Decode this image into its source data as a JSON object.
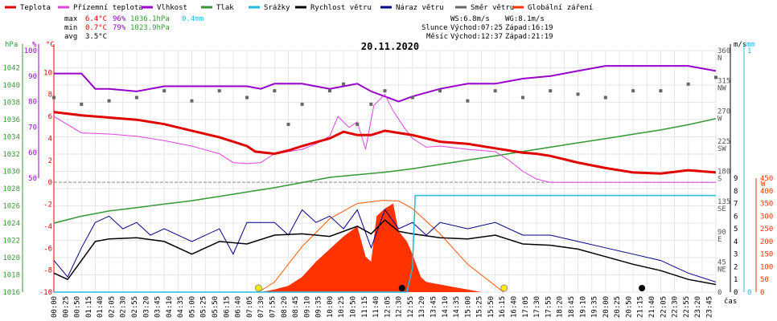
{
  "chart_data": {
    "type": "line",
    "title": "20.11.2020",
    "legend": [
      {
        "label": "Teplota",
        "color": "#e00000"
      },
      {
        "label": "Přízemní teplota",
        "color": "#dd44dd"
      },
      {
        "label": "Vlhkost",
        "color": "#9900cc"
      },
      {
        "label": "Tlak",
        "color": "#339933"
      },
      {
        "label": "Srážky",
        "color": "#22bbdd"
      },
      {
        "label": "Rychlost větru",
        "color": "#000000"
      },
      {
        "label": "Náraz větru",
        "color": "#000088"
      },
      {
        "label": "Směr větru",
        "color": "#666666"
      },
      {
        "label": "Globální záření",
        "color": "#ff3300"
      }
    ],
    "stats": {
      "max": {
        "label": "max",
        "temp": "6.4°C",
        "hum": "96%",
        "press": "1036.1hPa",
        "rain": "0.4mm"
      },
      "min": {
        "label": "min",
        "temp": "0.7°C",
        "hum": "79%",
        "press": "1023.9hPa"
      },
      "avg": {
        "label": "avg",
        "temp": "3.5°C"
      }
    },
    "wind_info": {
      "ws": "WS:6.8m/s",
      "wg": "WG:8.1m/s"
    },
    "sun_info": {
      "label": "Slunce",
      "rise": "Východ:07:25",
      "set": "Západ:16:19"
    },
    "moon_info": {
      "label": "Měsíc",
      "rise": "Východ:12:37",
      "set": "Západ:21:19"
    },
    "axes": {
      "hpa": {
        "unit": "hPa",
        "range": [
          1016,
          1044
        ],
        "ticks": [
          1016,
          1018,
          1020,
          1022,
          1024,
          1026,
          1028,
          1030,
          1032,
          1034,
          1036,
          1038,
          1040,
          1042
        ]
      },
      "hum": {
        "unit": "%",
        "range": [
          50,
          100
        ],
        "ticks": [
          50,
          60,
          70,
          80,
          90,
          100
        ]
      },
      "temp": {
        "unit": "°C",
        "range": [
          -10,
          12
        ],
        "ticks": [
          -10,
          -8,
          -6,
          -4,
          -2,
          0,
          2,
          4,
          6,
          8,
          10
        ]
      },
      "dir": {
        "ticks": [
          {
            "v": 0,
            "d": "0",
            "c": ""
          },
          {
            "v": 45,
            "d": "45",
            "c": "NE"
          },
          {
            "v": 90,
            "d": "90",
            "c": "E"
          },
          {
            "v": 135,
            "d": "135",
            "c": "SE"
          },
          {
            "v": 180,
            "d": "180",
            "c": "S"
          },
          {
            "v": 225,
            "d": "225",
            "c": "SW"
          },
          {
            "v": 270,
            "d": "270",
            "c": "W"
          },
          {
            "v": 315,
            "d": "315",
            "c": "NW"
          },
          {
            "v": 360,
            "d": "360",
            "c": "N"
          }
        ]
      },
      "wind": {
        "unit": "m/s",
        "range": [
          0,
          9
        ],
        "ticks": [
          0,
          1,
          2,
          3,
          4,
          5,
          6,
          7,
          8,
          9
        ]
      },
      "rain": {
        "unit": "mm",
        "range": [
          0,
          1
        ],
        "ticks": [
          0,
          1
        ]
      },
      "rad": {
        "unit": "W",
        "range": [
          0,
          450
        ],
        "ticks": [
          0,
          50,
          100,
          150,
          200,
          250,
          300,
          350,
          400,
          450
        ]
      },
      "x_unit": "čas",
      "x_ticks": [
        "00:00",
        "00:25",
        "00:50",
        "01:15",
        "01:40",
        "02:05",
        "02:30",
        "02:55",
        "03:20",
        "03:45",
        "04:10",
        "04:35",
        "05:00",
        "05:25",
        "05:50",
        "06:15",
        "06:40",
        "07:05",
        "07:30",
        "07:55",
        "08:20",
        "08:45",
        "09:10",
        "09:35",
        "10:00",
        "10:25",
        "10:50",
        "11:15",
        "11:40",
        "12:05",
        "12:30",
        "12:55",
        "13:20",
        "13:45",
        "14:10",
        "14:35",
        "15:00",
        "15:25",
        "15:50",
        "16:15",
        "16:40",
        "17:05",
        "17:30",
        "17:55",
        "18:20",
        "18:45",
        "19:10",
        "19:35",
        "20:00",
        "20:25",
        "20:50",
        "21:15",
        "21:40",
        "22:05",
        "22:30",
        "22:55",
        "23:20",
        "23:45"
      ]
    },
    "series": {
      "teplota": [
        [
          0,
          6.4
        ],
        [
          1,
          6.1
        ],
        [
          2,
          5.9
        ],
        [
          3,
          5.7
        ],
        [
          4,
          5.3
        ],
        [
          5,
          4.7
        ],
        [
          6,
          4.1
        ],
        [
          7,
          3.3
        ],
        [
          7.3,
          2.8
        ],
        [
          8,
          2.6
        ],
        [
          8.5,
          2.9
        ],
        [
          9,
          3.3
        ],
        [
          10,
          4.0
        ],
        [
          10.5,
          4.6
        ],
        [
          11,
          4.3
        ],
        [
          11.5,
          4.3
        ],
        [
          12,
          4.7
        ],
        [
          12.5,
          4.5
        ],
        [
          13,
          4.3
        ],
        [
          14,
          3.7
        ],
        [
          15,
          3.5
        ],
        [
          16,
          3.1
        ],
        [
          16.5,
          2.9
        ],
        [
          17,
          2.7
        ],
        [
          17.5,
          2.6
        ],
        [
          18,
          2.4
        ],
        [
          19,
          1.8
        ],
        [
          20,
          1.3
        ],
        [
          21,
          0.9
        ],
        [
          22,
          0.8
        ],
        [
          23,
          1.1
        ],
        [
          24,
          0.9
        ]
      ],
      "prizemni": [
        [
          0,
          6.0
        ],
        [
          1,
          4.5
        ],
        [
          2,
          4.4
        ],
        [
          3,
          4.2
        ],
        [
          4,
          3.8
        ],
        [
          5,
          3.3
        ],
        [
          6,
          2.6
        ],
        [
          6.5,
          1.8
        ],
        [
          7,
          1.7
        ],
        [
          7.5,
          1.8
        ],
        [
          8,
          2.6
        ],
        [
          9,
          3.0
        ],
        [
          9.5,
          3.5
        ],
        [
          10,
          4.2
        ],
        [
          10.3,
          6.0
        ],
        [
          10.7,
          5.0
        ],
        [
          11,
          5.5
        ],
        [
          11.3,
          3.0
        ],
        [
          11.6,
          7.0
        ],
        [
          12,
          8.0
        ],
        [
          12.3,
          6.5
        ],
        [
          12.7,
          5.0
        ],
        [
          13,
          4.0
        ],
        [
          13.5,
          3.2
        ],
        [
          14,
          3.3
        ],
        [
          15,
          3.0
        ],
        [
          16,
          2.8
        ],
        [
          16.5,
          2.0
        ],
        [
          17,
          1.0
        ],
        [
          17.5,
          0.3
        ],
        [
          18,
          0.0
        ],
        [
          19,
          0.0
        ],
        [
          20,
          0.0
        ],
        [
          21,
          0.0
        ],
        [
          22,
          0.0
        ],
        [
          24,
          0.0
        ]
      ],
      "vlhkost": [
        [
          0,
          91
        ],
        [
          1,
          91
        ],
        [
          1.5,
          85
        ],
        [
          2,
          85
        ],
        [
          3,
          84
        ],
        [
          4,
          86
        ],
        [
          5,
          86
        ],
        [
          6,
          86
        ],
        [
          7,
          86
        ],
        [
          7.5,
          85
        ],
        [
          8,
          87
        ],
        [
          9,
          87
        ],
        [
          10,
          85
        ],
        [
          10.5,
          86
        ],
        [
          11,
          87
        ],
        [
          11.5,
          84
        ],
        [
          12,
          82
        ],
        [
          12.5,
          80
        ],
        [
          13,
          82
        ],
        [
          14,
          85
        ],
        [
          15,
          87
        ],
        [
          16,
          87
        ],
        [
          17,
          89
        ],
        [
          18,
          90
        ],
        [
          19,
          92
        ],
        [
          20,
          94
        ],
        [
          21,
          94
        ],
        [
          22,
          94
        ],
        [
          23,
          94
        ],
        [
          24,
          92
        ]
      ],
      "tlak": [
        [
          0,
          1024.0
        ],
        [
          1,
          1024.8
        ],
        [
          2,
          1025.4
        ],
        [
          3,
          1025.8
        ],
        [
          4,
          1026.2
        ],
        [
          5,
          1026.6
        ],
        [
          6,
          1027.1
        ],
        [
          7,
          1027.6
        ],
        [
          8,
          1028.1
        ],
        [
          9,
          1028.7
        ],
        [
          10,
          1029.3
        ],
        [
          11,
          1029.6
        ],
        [
          12,
          1029.9
        ],
        [
          13,
          1030.3
        ],
        [
          14,
          1030.8
        ],
        [
          15,
          1031.3
        ],
        [
          16,
          1031.8
        ],
        [
          17,
          1032.3
        ],
        [
          18,
          1032.8
        ],
        [
          19,
          1033.3
        ],
        [
          20,
          1033.8
        ],
        [
          21,
          1034.3
        ],
        [
          22,
          1034.8
        ],
        [
          23,
          1035.4
        ],
        [
          24,
          1036.1
        ]
      ],
      "srazky": [
        [
          0,
          0
        ],
        [
          12.8,
          0
        ],
        [
          13.0,
          0.1
        ],
        [
          13.1,
          0.4
        ],
        [
          24,
          0.4
        ]
      ],
      "rychlost": [
        [
          0,
          1.5
        ],
        [
          0.5,
          1.0
        ],
        [
          1,
          2.5
        ],
        [
          1.5,
          4.0
        ],
        [
          2,
          4.2
        ],
        [
          3,
          4.3
        ],
        [
          4,
          4.0
        ],
        [
          5,
          3.0
        ],
        [
          6,
          4.0
        ],
        [
          7,
          3.8
        ],
        [
          8,
          4.5
        ],
        [
          9,
          4.6
        ],
        [
          10,
          4.4
        ],
        [
          11,
          5.2
        ],
        [
          11.5,
          4.6
        ],
        [
          12,
          5.7
        ],
        [
          12.5,
          4.8
        ],
        [
          13,
          4.6
        ],
        [
          14,
          4.3
        ],
        [
          15,
          4.2
        ],
        [
          16,
          4.5
        ],
        [
          17,
          3.8
        ],
        [
          18,
          3.7
        ],
        [
          19,
          3.4
        ],
        [
          20,
          2.8
        ],
        [
          21,
          2.2
        ],
        [
          22,
          1.7
        ],
        [
          23,
          1.0
        ],
        [
          24,
          0.6
        ]
      ],
      "naraz": [
        [
          0,
          2.5
        ],
        [
          0.5,
          1.2
        ],
        [
          1,
          3.5
        ],
        [
          1.5,
          5.5
        ],
        [
          2,
          6.0
        ],
        [
          2.5,
          5.0
        ],
        [
          3,
          5.5
        ],
        [
          3.5,
          4.5
        ],
        [
          4,
          5.0
        ],
        [
          5,
          4.0
        ],
        [
          6,
          5.0
        ],
        [
          6.5,
          3.0
        ],
        [
          7,
          5.5
        ],
        [
          8,
          5.5
        ],
        [
          8.5,
          4.5
        ],
        [
          9,
          6.5
        ],
        [
          9.5,
          5.5
        ],
        [
          10,
          6.0
        ],
        [
          10.5,
          5.0
        ],
        [
          11,
          6.5
        ],
        [
          11.5,
          3.5
        ],
        [
          12,
          6.5
        ],
        [
          12.5,
          5.0
        ],
        [
          13,
          5.5
        ],
        [
          13.5,
          4.5
        ],
        [
          14,
          5.5
        ],
        [
          15,
          5.0
        ],
        [
          16,
          5.5
        ],
        [
          17,
          4.5
        ],
        [
          18,
          4.5
        ],
        [
          19,
          4.0
        ],
        [
          20,
          3.5
        ],
        [
          21,
          3.0
        ],
        [
          22,
          2.5
        ],
        [
          23,
          1.5
        ],
        [
          24,
          0.8
        ]
      ],
      "smer": [
        [
          0,
          290
        ],
        [
          1,
          280
        ],
        [
          2,
          285
        ],
        [
          3,
          290
        ],
        [
          4,
          300
        ],
        [
          5,
          285
        ],
        [
          6,
          300
        ],
        [
          7,
          290
        ],
        [
          8,
          300
        ],
        [
          8.5,
          250
        ],
        [
          9,
          280
        ],
        [
          10,
          300
        ],
        [
          10.5,
          310
        ],
        [
          11,
          250
        ],
        [
          11.5,
          280
        ],
        [
          12,
          300
        ],
        [
          13,
          290
        ],
        [
          14,
          300
        ],
        [
          15,
          285
        ],
        [
          16,
          300
        ],
        [
          17,
          290
        ],
        [
          18,
          300
        ],
        [
          19,
          295
        ],
        [
          20,
          290
        ],
        [
          21,
          300
        ],
        [
          22,
          300
        ],
        [
          23,
          310
        ],
        [
          24,
          320
        ]
      ],
      "zareni": [
        [
          0,
          0
        ],
        [
          7.5,
          0
        ],
        [
          8,
          10
        ],
        [
          8.5,
          25
        ],
        [
          9,
          60
        ],
        [
          9.5,
          120
        ],
        [
          10,
          170
        ],
        [
          10.5,
          220
        ],
        [
          11,
          260
        ],
        [
          11.3,
          140
        ],
        [
          11.5,
          120
        ],
        [
          11.7,
          300
        ],
        [
          12,
          330
        ],
        [
          12.3,
          350
        ],
        [
          12.5,
          240
        ],
        [
          12.8,
          200
        ],
        [
          13,
          150
        ],
        [
          13.3,
          60
        ],
        [
          13.5,
          40
        ],
        [
          14,
          30
        ],
        [
          14.5,
          20
        ],
        [
          15,
          10
        ],
        [
          15.5,
          0
        ],
        [
          24,
          0
        ]
      ],
      "zareni_max": [
        [
          7.42,
          0
        ],
        [
          8,
          40
        ],
        [
          9,
          180
        ],
        [
          10,
          290
        ],
        [
          11,
          350
        ],
        [
          11.9,
          362
        ],
        [
          12.5,
          360
        ],
        [
          13,
          330
        ],
        [
          14,
          230
        ],
        [
          15,
          110
        ],
        [
          16.3,
          0
        ]
      ]
    },
    "markers": [
      {
        "t": 7.42,
        "kind": "sunrise"
      },
      {
        "t": 16.32,
        "kind": "sunset"
      },
      {
        "t": 12.62,
        "kind": "moonrise"
      },
      {
        "t": 21.32,
        "kind": "moonset"
      }
    ]
  }
}
